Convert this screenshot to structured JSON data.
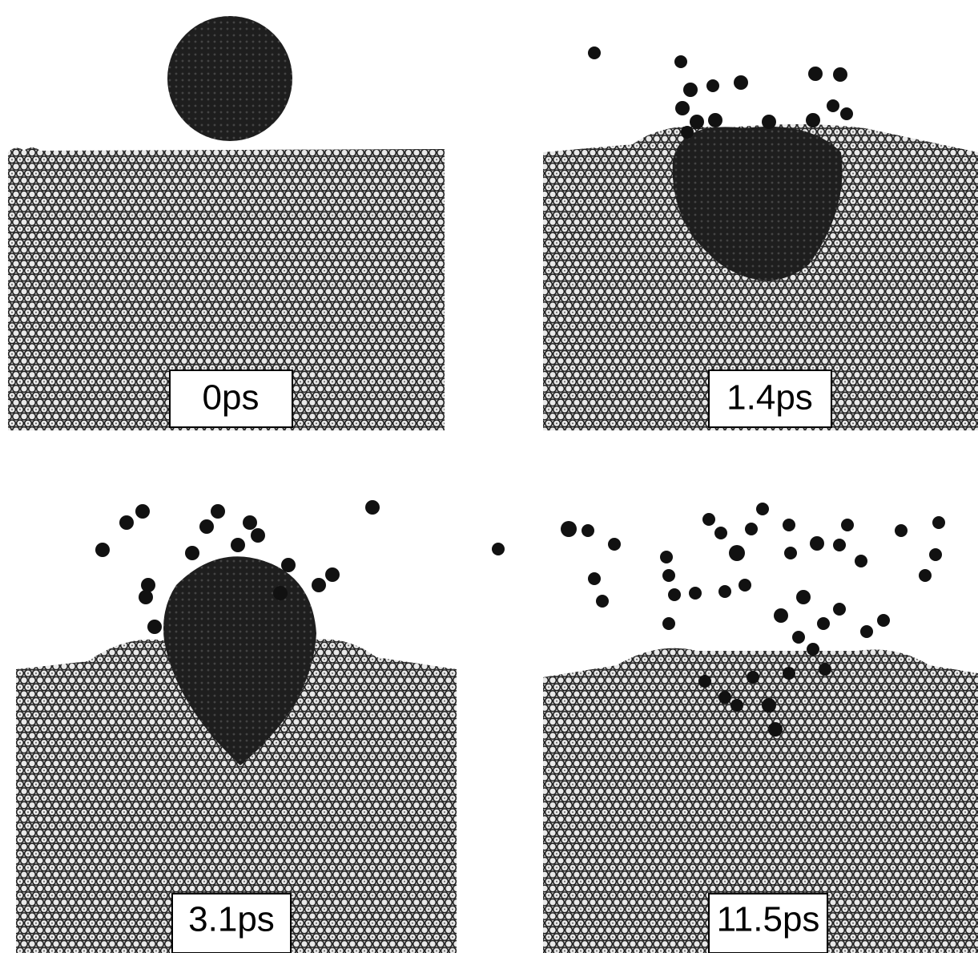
{
  "panels": [
    {
      "label": "0ps"
    },
    {
      "label": "1.4ps"
    },
    {
      "label": "3.1ps"
    },
    {
      "label": "11.5ps"
    }
  ]
}
